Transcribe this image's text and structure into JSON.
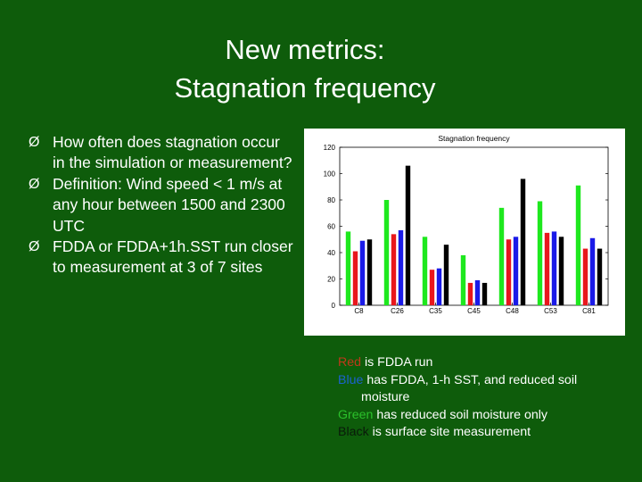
{
  "slide": {
    "title_line1": "New metrics:",
    "title_line2": "Stagnation frequency",
    "bullets": [
      "How often does stagnation occur in the simulation or measurement?",
      "Definition:  Wind speed < 1 m/s at any hour between 1500 and 2300 UTC",
      "FDDA or FDDA+1h.SST run closer to measurement at 3 of 7 sites"
    ],
    "bullet_glyph": "Ø",
    "legend": {
      "red_word": "Red",
      "red_text": " is FDDA run",
      "blue_word": "Blue",
      "blue_text": " has FDDA, 1-h SST, and reduced soil",
      "blue_text_cont": "moisture",
      "green_word": "Green",
      "green_text": " has reduced soil moisture only",
      "black_word": "Black",
      "black_text": " is surface site measurement"
    }
  },
  "colors": {
    "background": "#0e5c0b",
    "green": "#1ee81e",
    "red": "#e8171c",
    "blue": "#1a1ae8",
    "black": "#000000"
  },
  "chart_data": {
    "type": "bar",
    "title": "Stagnation frequency",
    "categories": [
      "C8",
      "C26",
      "C35",
      "C45",
      "C48",
      "C53",
      "C81"
    ],
    "series": [
      {
        "color": "green",
        "values": [
          56,
          80,
          52,
          38,
          74,
          79,
          91
        ]
      },
      {
        "color": "red",
        "values": [
          41,
          54,
          27,
          17,
          50,
          55,
          43
        ]
      },
      {
        "color": "blue",
        "values": [
          49,
          57,
          28,
          19,
          52,
          56,
          51
        ]
      },
      {
        "color": "black",
        "values": [
          50,
          106,
          46,
          17,
          96,
          52,
          43
        ]
      }
    ],
    "ylim": [
      0,
      120
    ],
    "yticks": [
      "0",
      "20",
      "40",
      "60",
      "80",
      "100",
      "120"
    ],
    "grid": false
  }
}
